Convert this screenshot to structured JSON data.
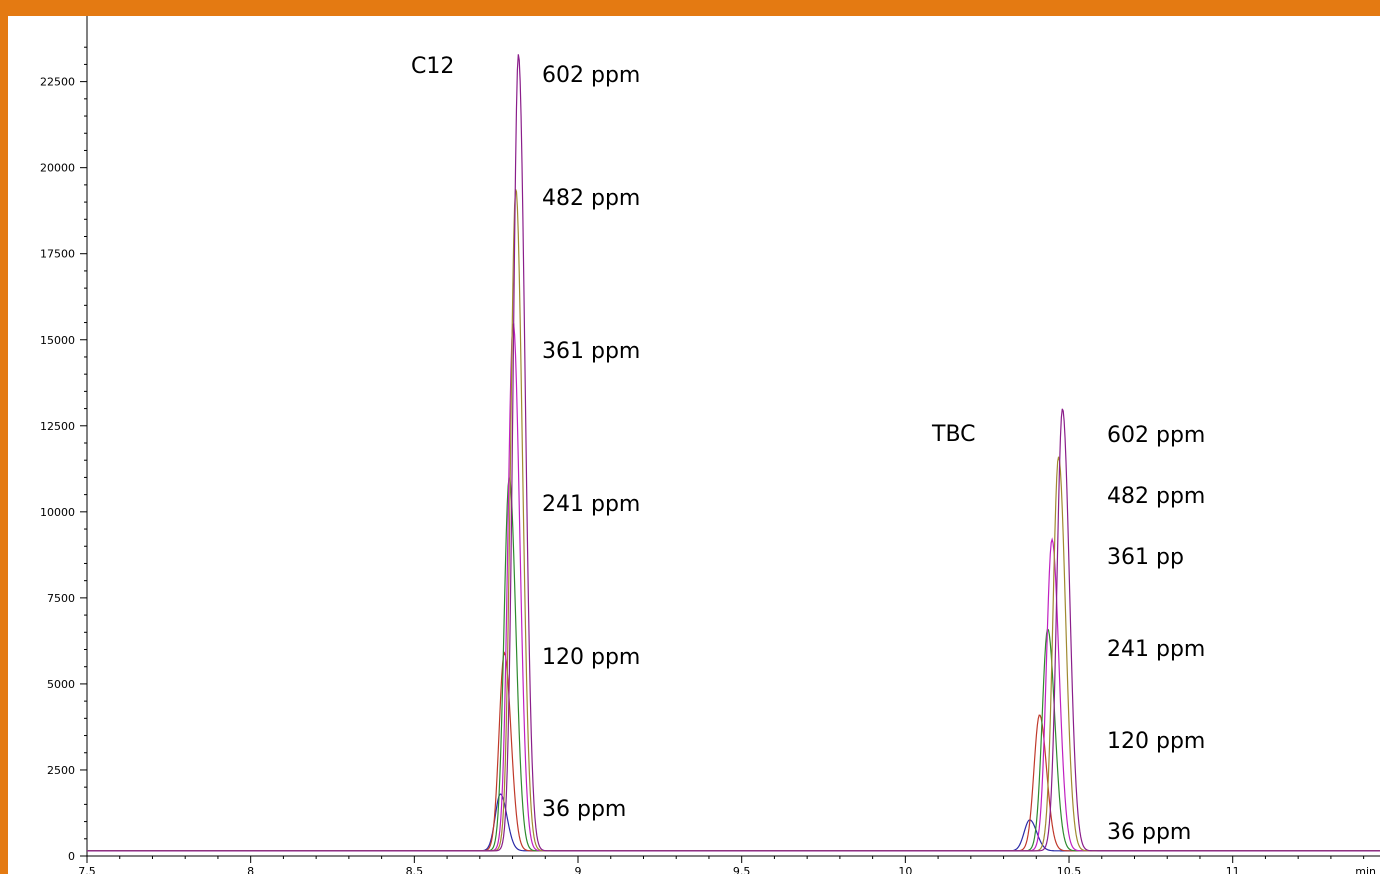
{
  "chart_data": {
    "type": "line",
    "title": "",
    "xlabel": "min",
    "ylabel": "",
    "xlim": [
      7.5,
      11.45
    ],
    "ylim": [
      0,
      24000
    ],
    "grid": false,
    "xticks": [
      7.5,
      8,
      8.5,
      9,
      9.5,
      10,
      10.5,
      11
    ],
    "xtick_labels": [
      "7.5",
      "8",
      "8.5",
      "9",
      "9.5",
      "10",
      "10.5",
      "11"
    ],
    "yticks": [
      0,
      2500,
      5000,
      7500,
      10000,
      12500,
      15000,
      17500,
      20000,
      22500
    ],
    "ytick_labels": [
      "0",
      "2500",
      "5000",
      "7500",
      "10000",
      "12500",
      "15000",
      "17500",
      "20000",
      "22500"
    ],
    "baseline": 150,
    "series": [
      {
        "color": "#2a2aa8",
        "peaks": [
          {
            "x": 8.763,
            "y": 1800,
            "w": 0.016
          },
          {
            "x": 10.38,
            "y": 1050,
            "w": 0.017
          }
        ]
      },
      {
        "color": "#c0392b",
        "peaks": [
          {
            "x": 8.775,
            "y": 5900,
            "w": 0.016
          },
          {
            "x": 10.41,
            "y": 4100,
            "w": 0.017
          }
        ]
      },
      {
        "color": "#2e8b2e",
        "peaks": [
          {
            "x": 8.79,
            "y": 11000,
            "w": 0.016
          },
          {
            "x": 10.435,
            "y": 6600,
            "w": 0.017
          }
        ]
      },
      {
        "color": "#c020c0",
        "peaks": [
          {
            "x": 8.802,
            "y": 15500,
            "w": 0.016
          },
          {
            "x": 10.448,
            "y": 9200,
            "w": 0.017
          }
        ]
      },
      {
        "color": "#a08a30",
        "peaks": [
          {
            "x": 8.81,
            "y": 19400,
            "w": 0.016
          },
          {
            "x": 10.468,
            "y": 11600,
            "w": 0.017
          }
        ]
      },
      {
        "color": "#8a1e8a",
        "peaks": [
          {
            "x": 8.818,
            "y": 23300,
            "w": 0.016
          },
          {
            "x": 10.48,
            "y": 13000,
            "w": 0.017
          }
        ]
      }
    ]
  },
  "annotations": {
    "c12": "C12",
    "tbc": "TBC",
    "c12_labels": [
      "602 ppm",
      "482 ppm",
      "361 ppm",
      "241 ppm",
      "120 ppm",
      "36 ppm"
    ],
    "tbc_labels": [
      "602 ppm",
      "482 ppm",
      "361 pp",
      "241 ppm",
      "120 ppm",
      "36 ppm"
    ]
  }
}
